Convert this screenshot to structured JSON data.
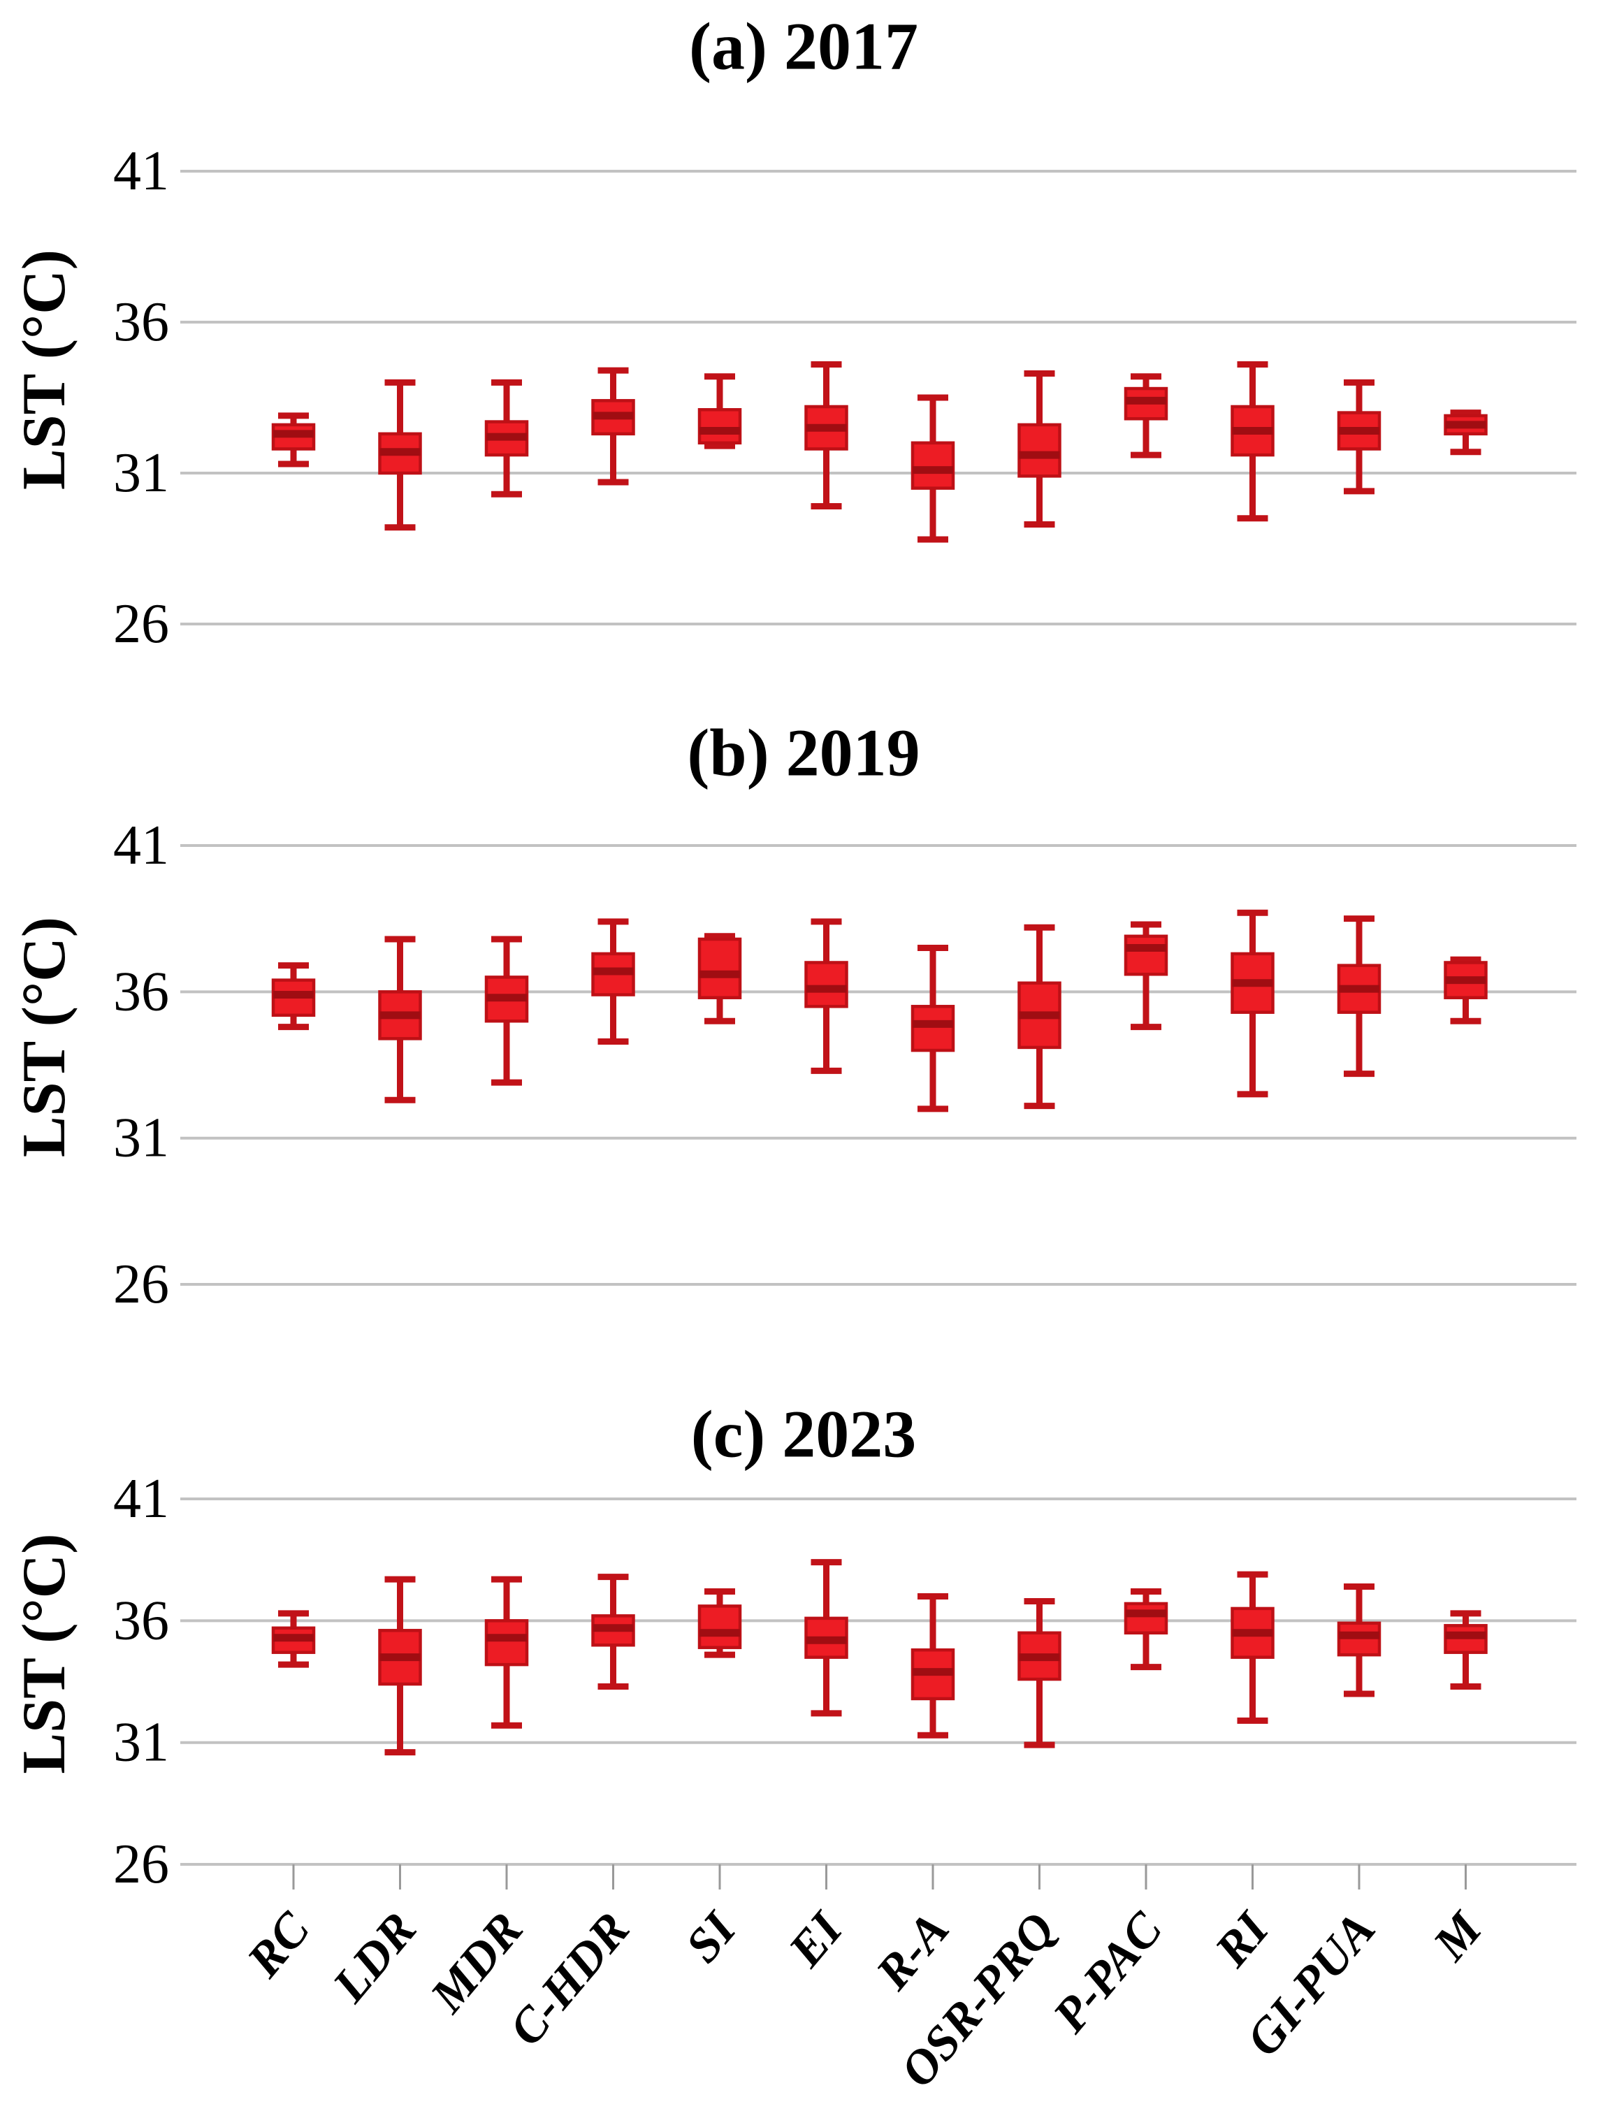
{
  "figure": {
    "kind": "three-panel box plot figure",
    "background": "#ffffff"
  },
  "y_axis": {
    "label": "LST (°C)",
    "ticks": [
      41,
      36,
      31,
      26
    ],
    "min": 26,
    "max": 41
  },
  "x_axis": {
    "categories": [
      "RC",
      "LDR",
      "MDR",
      "C-HDR",
      "SI",
      "EI",
      "R-A",
      "OSR-PRQ",
      "P-PAC",
      "RI",
      "GI-PUA",
      "M"
    ]
  },
  "colors": {
    "box_fill": "#ED1C24",
    "box_border": "#BE1016",
    "median": "#A00D12",
    "whisker": "#C11218",
    "gridline": "#C2C2C2",
    "axis_tick": "#999999",
    "text": "#000000"
  },
  "chart_data": [
    {
      "type": "box",
      "title": "(a) 2017",
      "ylabel": "LST (°C)",
      "ylim": [
        26,
        41
      ],
      "yticks": [
        41,
        36,
        31,
        26
      ],
      "grid": true,
      "legend": false,
      "categories": [
        "RC",
        "LDR",
        "MDR",
        "C-HDR",
        "SI",
        "EI",
        "R-A",
        "OSR-PRQ",
        "P-PAC",
        "RI",
        "GI-PUA",
        "M"
      ],
      "boxes": [
        {
          "category": "RC",
          "low": 31.3,
          "q1": 31.8,
          "median": 32.3,
          "q3": 32.6,
          "high": 32.9
        },
        {
          "category": "LDR",
          "low": 29.2,
          "q1": 31.0,
          "median": 31.7,
          "q3": 32.3,
          "high": 34.0
        },
        {
          "category": "MDR",
          "low": 30.3,
          "q1": 31.6,
          "median": 32.2,
          "q3": 32.7,
          "high": 34.0
        },
        {
          "category": "C-HDR",
          "low": 30.7,
          "q1": 32.3,
          "median": 32.9,
          "q3": 33.4,
          "high": 34.4
        },
        {
          "category": "SI",
          "low": 31.9,
          "q1": 32.0,
          "median": 32.4,
          "q3": 33.1,
          "high": 34.2
        },
        {
          "category": "EI",
          "low": 29.9,
          "q1": 31.8,
          "median": 32.5,
          "q3": 33.2,
          "high": 34.6
        },
        {
          "category": "R-A",
          "low": 28.8,
          "q1": 30.5,
          "median": 31.1,
          "q3": 32.0,
          "high": 33.5
        },
        {
          "category": "OSR-PRQ",
          "low": 29.3,
          "q1": 30.9,
          "median": 31.6,
          "q3": 32.6,
          "high": 34.3
        },
        {
          "category": "P-PAC",
          "low": 31.6,
          "q1": 32.8,
          "median": 33.4,
          "q3": 33.8,
          "high": 34.2
        },
        {
          "category": "RI",
          "low": 29.5,
          "q1": 31.6,
          "median": 32.4,
          "q3": 33.2,
          "high": 34.6
        },
        {
          "category": "GI-PUA",
          "low": 30.4,
          "q1": 31.8,
          "median": 32.4,
          "q3": 33.0,
          "high": 34.0
        },
        {
          "category": "M",
          "low": 31.7,
          "q1": 32.3,
          "median": 32.6,
          "q3": 32.9,
          "high": 33.0
        }
      ]
    },
    {
      "type": "box",
      "title": "(b) 2019",
      "ylabel": "LST (°C)",
      "ylim": [
        26,
        41
      ],
      "yticks": [
        41,
        36,
        31,
        26
      ],
      "grid": true,
      "legend": false,
      "categories": [
        "RC",
        "LDR",
        "MDR",
        "C-HDR",
        "SI",
        "EI",
        "R-A",
        "OSR-PRQ",
        "P-PAC",
        "RI",
        "GI-PUA",
        "M"
      ],
      "boxes": [
        {
          "category": "RC",
          "low": 34.8,
          "q1": 35.2,
          "median": 35.9,
          "q3": 36.4,
          "high": 36.9
        },
        {
          "category": "LDR",
          "low": 32.3,
          "q1": 34.4,
          "median": 35.2,
          "q3": 36.0,
          "high": 37.8
        },
        {
          "category": "MDR",
          "low": 32.9,
          "q1": 35.0,
          "median": 35.8,
          "q3": 36.5,
          "high": 37.8
        },
        {
          "category": "C-HDR",
          "low": 34.3,
          "q1": 35.9,
          "median": 36.7,
          "q3": 37.3,
          "high": 38.4
        },
        {
          "category": "SI",
          "low": 35.0,
          "q1": 35.8,
          "median": 36.6,
          "q3": 37.8,
          "high": 37.9
        },
        {
          "category": "EI",
          "low": 33.3,
          "q1": 35.5,
          "median": 36.1,
          "q3": 37.0,
          "high": 38.4
        },
        {
          "category": "R-A",
          "low": 32.0,
          "q1": 34.0,
          "median": 34.9,
          "q3": 35.5,
          "high": 37.5
        },
        {
          "category": "OSR-PRQ",
          "low": 32.1,
          "q1": 34.1,
          "median": 35.2,
          "q3": 36.3,
          "high": 38.2
        },
        {
          "category": "P-PAC",
          "low": 34.8,
          "q1": 36.6,
          "median": 37.5,
          "q3": 37.9,
          "high": 38.3
        },
        {
          "category": "RI",
          "low": 32.5,
          "q1": 35.3,
          "median": 36.3,
          "q3": 37.3,
          "high": 38.7
        },
        {
          "category": "GI-PUA",
          "low": 33.2,
          "q1": 35.3,
          "median": 36.1,
          "q3": 36.9,
          "high": 38.5
        },
        {
          "category": "M",
          "low": 35.0,
          "q1": 35.8,
          "median": 36.4,
          "q3": 37.0,
          "high": 37.1
        }
      ]
    },
    {
      "type": "box",
      "title": "(c) 2023",
      "ylabel": "LST (°C)",
      "ylim": [
        26,
        41
      ],
      "yticks": [
        41,
        36,
        31,
        26
      ],
      "grid": true,
      "legend": false,
      "categories": [
        "RC",
        "LDR",
        "MDR",
        "C-HDR",
        "SI",
        "EI",
        "R-A",
        "OSR-PRQ",
        "P-PAC",
        "RI",
        "GI-PUA",
        "M"
      ],
      "boxes": [
        {
          "category": "RC",
          "low": 34.2,
          "q1": 34.7,
          "median": 35.3,
          "q3": 35.7,
          "high": 36.3
        },
        {
          "category": "LDR",
          "low": 30.6,
          "q1": 33.4,
          "median": 34.5,
          "q3": 35.6,
          "high": 37.7
        },
        {
          "category": "MDR",
          "low": 31.7,
          "q1": 34.2,
          "median": 35.3,
          "q3": 36.0,
          "high": 37.7
        },
        {
          "category": "C-HDR",
          "low": 33.3,
          "q1": 35.0,
          "median": 35.7,
          "q3": 36.2,
          "high": 37.8
        },
        {
          "category": "SI",
          "low": 34.6,
          "q1": 34.9,
          "median": 35.5,
          "q3": 36.6,
          "high": 37.2
        },
        {
          "category": "EI",
          "low": 32.2,
          "q1": 34.5,
          "median": 35.2,
          "q3": 36.1,
          "high": 38.4
        },
        {
          "category": "R-A",
          "low": 31.3,
          "q1": 32.8,
          "median": 33.9,
          "q3": 34.8,
          "high": 37.0
        },
        {
          "category": "OSR-PRQ",
          "low": 30.9,
          "q1": 33.6,
          "median": 34.5,
          "q3": 35.5,
          "high": 36.8
        },
        {
          "category": "P-PAC",
          "low": 34.1,
          "q1": 35.5,
          "median": 36.3,
          "q3": 36.7,
          "high": 37.2
        },
        {
          "category": "RI",
          "low": 31.9,
          "q1": 34.5,
          "median": 35.5,
          "q3": 36.5,
          "high": 37.9
        },
        {
          "category": "GI-PUA",
          "low": 33.0,
          "q1": 34.6,
          "median": 35.4,
          "q3": 35.9,
          "high": 37.4
        },
        {
          "category": "M",
          "low": 33.3,
          "q1": 34.7,
          "median": 35.4,
          "q3": 35.8,
          "high": 36.3
        }
      ]
    }
  ]
}
